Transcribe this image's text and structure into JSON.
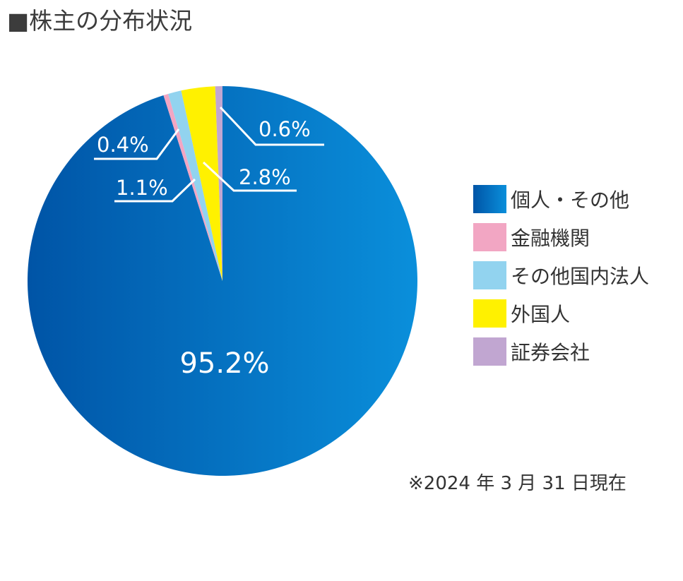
{
  "title": "■株主の分布状況",
  "footnote": "※2024 年 3 月 31 日現在",
  "colors": {
    "individual_start": "#0054a6",
    "individual_end": "#0a8fdb",
    "financial": "#f2a6c3",
    "other_domestic": "#92d3ef",
    "foreign": "#fff100",
    "securities": "#c1a6d1"
  },
  "chart_data": {
    "type": "pie",
    "title": "株主の分布状況",
    "slices": [
      {
        "label": "個人・その他",
        "value": 95.2,
        "value_label": "95.2%",
        "color": "#0067bb"
      },
      {
        "label": "金融機関",
        "value": 0.4,
        "value_label": "0.4%",
        "color": "#f2a6c3"
      },
      {
        "label": "その他国内法人",
        "value": 1.1,
        "value_label": "1.1%",
        "color": "#92d3ef"
      },
      {
        "label": "外国人",
        "value": 2.8,
        "value_label": "2.8%",
        "color": "#fff100"
      },
      {
        "label": "証券会社",
        "value": 0.6,
        "value_label": "0.6%",
        "color": "#c1a6d1"
      }
    ],
    "legend": "right"
  },
  "legend": [
    {
      "label": "個人・その他",
      "color": "#0067bb"
    },
    {
      "label": "金融機関",
      "color": "#f2a6c3"
    },
    {
      "label": "その他国内法人",
      "color": "#92d3ef"
    },
    {
      "label": "外国人",
      "color": "#fff100"
    },
    {
      "label": "証券会社",
      "color": "#c1a6d1"
    }
  ]
}
